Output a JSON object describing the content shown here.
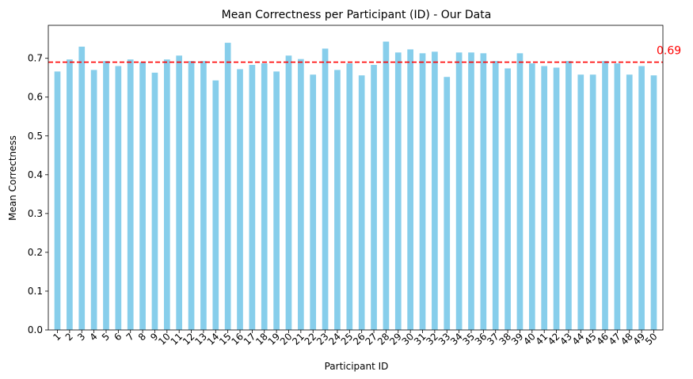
{
  "chart_data": {
    "type": "bar",
    "title": "Mean Correctness per Participant (ID) - Our Data",
    "xlabel": "Participant ID",
    "ylabel": "Mean Correctness",
    "ylim": [
      0,
      0.785
    ],
    "yticks": [
      "0.0",
      "0.1",
      "0.2",
      "0.3",
      "0.4",
      "0.5",
      "0.6",
      "0.7"
    ],
    "categories": [
      "1",
      "2",
      "3",
      "4",
      "5",
      "6",
      "7",
      "8",
      "9",
      "10",
      "11",
      "12",
      "13",
      "14",
      "15",
      "16",
      "17",
      "18",
      "19",
      "20",
      "21",
      "22",
      "23",
      "24",
      "25",
      "26",
      "27",
      "28",
      "29",
      "30",
      "31",
      "32",
      "33",
      "34",
      "35",
      "36",
      "37",
      "38",
      "39",
      "40",
      "41",
      "42",
      "43",
      "44",
      "45",
      "46",
      "47",
      "48",
      "49",
      "50"
    ],
    "values": [
      0.666,
      0.697,
      0.73,
      0.67,
      0.693,
      0.68,
      0.697,
      0.69,
      0.663,
      0.697,
      0.707,
      0.693,
      0.693,
      0.643,
      0.74,
      0.672,
      0.683,
      0.687,
      0.666,
      0.707,
      0.698,
      0.658,
      0.725,
      0.67,
      0.687,
      0.656,
      0.683,
      0.743,
      0.715,
      0.723,
      0.713,
      0.717,
      0.652,
      0.715,
      0.715,
      0.713,
      0.693,
      0.674,
      0.713,
      0.687,
      0.68,
      0.676,
      0.693,
      0.658,
      0.658,
      0.693,
      0.687,
      0.658,
      0.68,
      0.656
    ],
    "bar_color": "#87ceeb",
    "mean_line": {
      "value": 0.69,
      "label": "0.69",
      "color": "#ff0000",
      "style": "dashed"
    },
    "grid": false,
    "legend": "none"
  }
}
